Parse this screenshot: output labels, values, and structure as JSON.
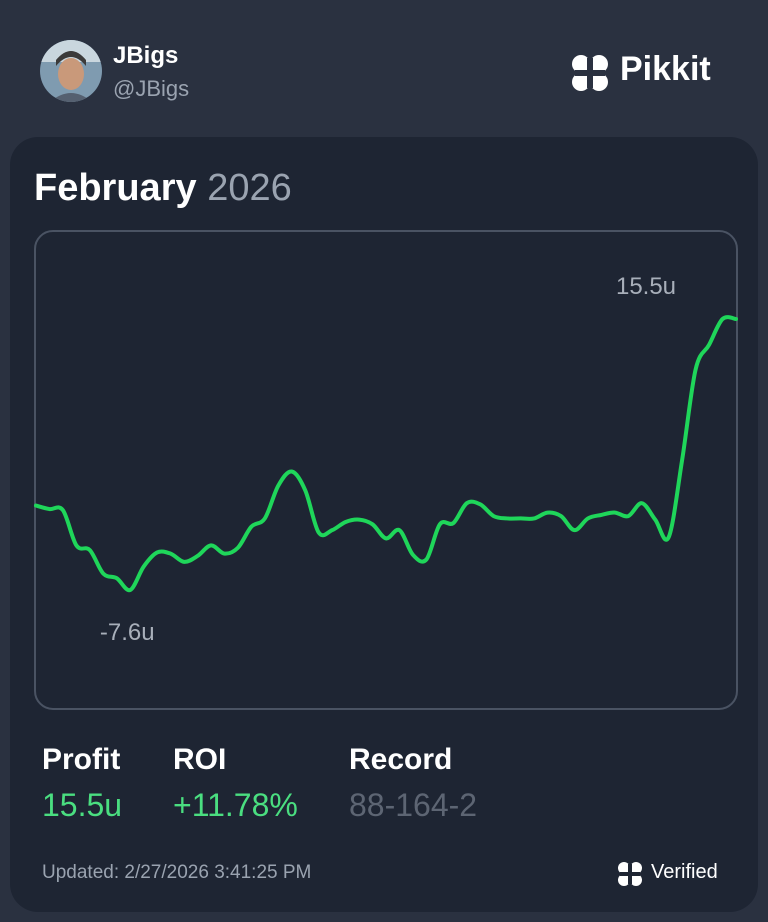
{
  "header": {
    "name": "JBigs",
    "handle": "@JBigs",
    "brand": "Pikkit"
  },
  "card": {
    "month": "February",
    "year": "2026"
  },
  "chart_data": {
    "type": "line",
    "color": "#1fd65a",
    "values": [
      -0.4,
      -0.7,
      -0.8,
      -3.8,
      -4.2,
      -6.2,
      -6.6,
      -7.6,
      -5.6,
      -4.4,
      -4.5,
      -5.2,
      -4.7,
      -3.8,
      -4.5,
      -4.0,
      -2.2,
      -1.5,
      1.3,
      2.5,
      0.9,
      -2.7,
      -2.5,
      -1.8,
      -1.6,
      -2.0,
      -3.2,
      -2.5,
      -4.6,
      -5.0,
      -2.0,
      -1.9,
      -0.2,
      -0.3,
      -1.3,
      -1.5,
      -1.5,
      -1.5,
      -1.0,
      -1.3,
      -2.5,
      -1.5,
      -1.2,
      -1.0,
      -1.3,
      -0.2,
      -1.6,
      -3.1,
      3.5,
      11.2,
      13.3,
      15.5,
      15.5
    ],
    "annotations": [
      {
        "text": "15.5u",
        "value": 15.5
      },
      {
        "text": "-7.6u",
        "value": -7.6
      }
    ]
  },
  "stats": [
    {
      "label": "Profit",
      "value": "15.5u"
    },
    {
      "label": "ROI",
      "value": "+11.78%"
    },
    {
      "label": "Record",
      "value": "88-164-2"
    }
  ],
  "footer": {
    "updated": "Updated: 2/27/2026 3:41:25 PM",
    "verified": "Verified"
  }
}
